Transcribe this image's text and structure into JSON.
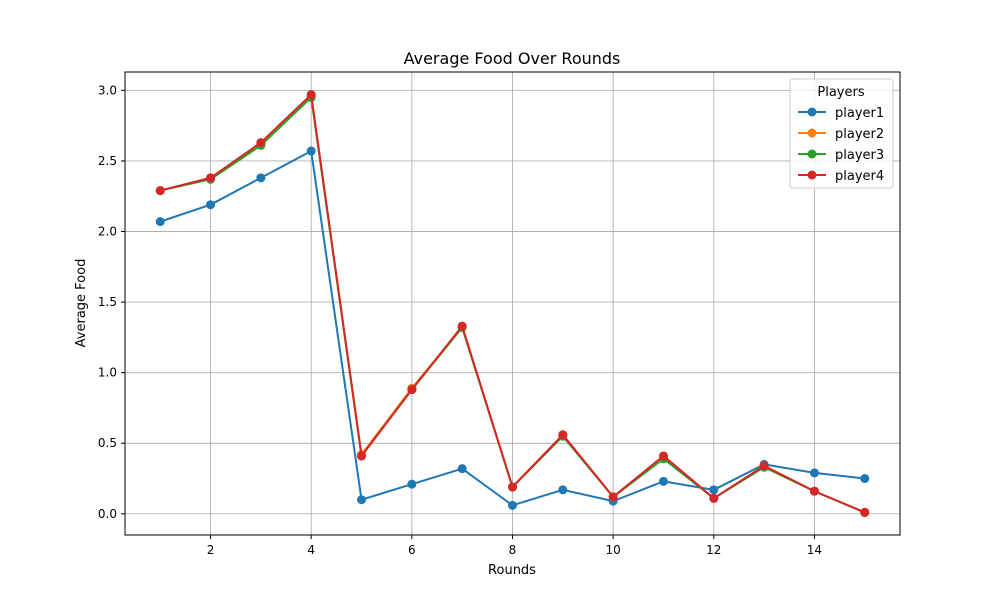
{
  "chart_data": {
    "type": "line",
    "title": "Average Food Over Rounds",
    "xlabel": "Rounds",
    "ylabel": "Average Food",
    "x": [
      1,
      2,
      3,
      4,
      5,
      6,
      7,
      8,
      9,
      10,
      11,
      12,
      13,
      14,
      15
    ],
    "xlim": [
      0.3,
      15.7
    ],
    "ylim": [
      -0.15,
      3.13
    ],
    "xticks": [
      2,
      4,
      6,
      8,
      10,
      12,
      14
    ],
    "yticks": [
      0.0,
      0.5,
      1.0,
      1.5,
      2.0,
      2.5,
      3.0
    ],
    "xtick_labels": [
      "2",
      "4",
      "6",
      "8",
      "10",
      "12",
      "14"
    ],
    "ytick_labels": [
      "0.0",
      "0.5",
      "1.0",
      "1.5",
      "2.0",
      "2.5",
      "3.0"
    ],
    "grid": true,
    "legend": {
      "title": "Players",
      "placement": "top-right"
    },
    "series": [
      {
        "name": "player1",
        "color": "#1f77b4",
        "values": [
          2.07,
          2.19,
          2.38,
          2.57,
          0.1,
          0.21,
          0.32,
          0.06,
          0.17,
          0.09,
          0.23,
          0.17,
          0.35,
          0.29,
          0.25
        ]
      },
      {
        "name": "player2",
        "color": "#ff7f0e",
        "values": [
          2.29,
          2.38,
          2.62,
          2.96,
          0.42,
          0.89,
          1.32,
          0.19,
          0.56,
          0.12,
          0.41,
          0.11,
          0.34,
          0.16,
          0.01
        ]
      },
      {
        "name": "player3",
        "color": "#2ca02c",
        "values": [
          2.29,
          2.37,
          2.61,
          2.95,
          0.41,
          0.88,
          1.32,
          0.19,
          0.55,
          0.12,
          0.39,
          0.11,
          0.33,
          0.16,
          0.01
        ]
      },
      {
        "name": "player4",
        "color": "#d62728",
        "values": [
          2.29,
          2.38,
          2.63,
          2.97,
          0.41,
          0.88,
          1.33,
          0.19,
          0.56,
          0.12,
          0.41,
          0.11,
          0.34,
          0.16,
          0.01
        ]
      }
    ]
  }
}
